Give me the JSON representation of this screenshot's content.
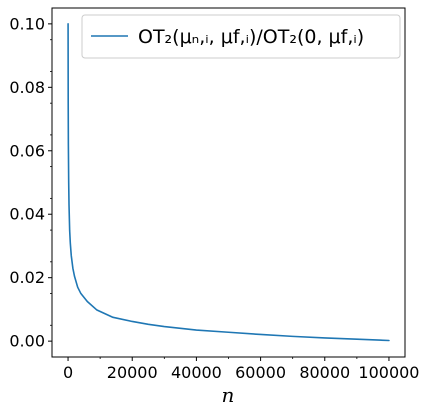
{
  "chart_data": {
    "type": "line",
    "title": "",
    "xlabel": "n",
    "ylabel": "",
    "xlim": [
      -5000,
      105000
    ],
    "ylim": [
      -0.005,
      0.105
    ],
    "grid": false,
    "legend_position": "top-right",
    "x_ticks": [
      0,
      20000,
      40000,
      60000,
      80000,
      100000
    ],
    "x_tick_labels": [
      "0",
      "20000",
      "40000",
      "60000",
      "80000",
      "100000"
    ],
    "y_ticks": [
      0.0,
      0.02,
      0.04,
      0.06,
      0.08,
      0.1
    ],
    "y_tick_labels": [
      "0.00",
      "0.02",
      "0.04",
      "0.06",
      "0.08",
      "0.10"
    ],
    "series": [
      {
        "name": "OT₂(μₙ,ᵢ, μf,ᵢ)/OT₂(0, μf,ᵢ)",
        "color": "#1f77b4",
        "x": [
          10,
          50,
          100,
          200,
          300,
          500,
          700,
          1000,
          1500,
          2000,
          3000,
          4000,
          6000,
          9000,
          14000,
          20000,
          25000,
          30000,
          40000,
          50000,
          60000,
          70000,
          80000,
          90000,
          100000
        ],
        "y": [
          0.1,
          0.075,
          0.062,
          0.05,
          0.043,
          0.035,
          0.031,
          0.027,
          0.023,
          0.0205,
          0.017,
          0.015,
          0.0125,
          0.0098,
          0.0075,
          0.0062,
          0.0053,
          0.0046,
          0.0035,
          0.0028,
          0.0021,
          0.0015,
          0.001,
          0.0006,
          0.0002
        ]
      }
    ]
  }
}
